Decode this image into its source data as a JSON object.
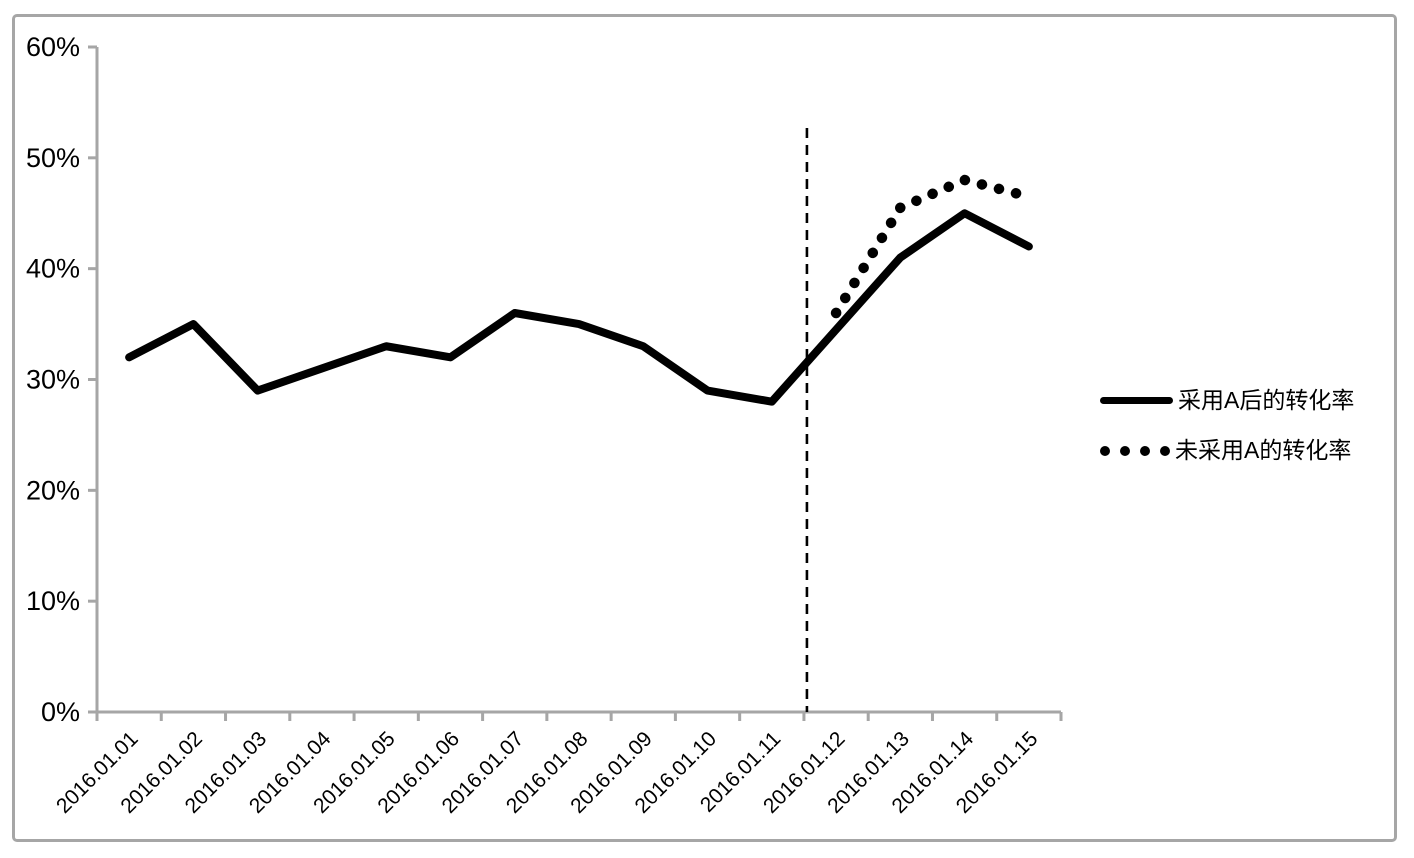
{
  "chart_data": {
    "type": "line",
    "title": "",
    "xlabel": "",
    "ylabel": "",
    "categories": [
      "2016.01.01",
      "2016.01.02",
      "2016.01.03",
      "2016.01.04",
      "2016.01.05",
      "2016.01.06",
      "2016.01.07",
      "2016.01.08",
      "2016.01.09",
      "2016.01.10",
      "2016.01.11",
      "2016.01.12",
      "2016.01.13",
      "2016.01.14",
      "2016.01.15"
    ],
    "y_axis_labels": [
      "0%",
      "10%",
      "20%",
      "30%",
      "40%",
      "50%",
      "60%"
    ],
    "ylim": [
      0,
      60
    ],
    "ytick_step": 10,
    "grid": false,
    "legend_position": "right",
    "series": [
      {
        "name": "采用A后的转化率",
        "line_style": "solid",
        "color": "#000000",
        "values": [
          32,
          35,
          29,
          31,
          33,
          32,
          36,
          35,
          33,
          29,
          28,
          34.5,
          41,
          45,
          42
        ]
      },
      {
        "name": "未采用A的转化率",
        "line_style": "dotted",
        "color": "#000000",
        "values": [
          null,
          null,
          null,
          null,
          null,
          null,
          null,
          null,
          null,
          null,
          null,
          36,
          45.5,
          48,
          46.5
        ]
      }
    ],
    "vline": {
      "style": "dashed",
      "color": "#000000",
      "between_categories": [
        "2016.01.11",
        "2016.01.12"
      ]
    }
  },
  "colors": {
    "axis": "#a6a6a6",
    "frame_border": "#a6a6a6",
    "series_line": "#000000",
    "background": "#ffffff"
  }
}
